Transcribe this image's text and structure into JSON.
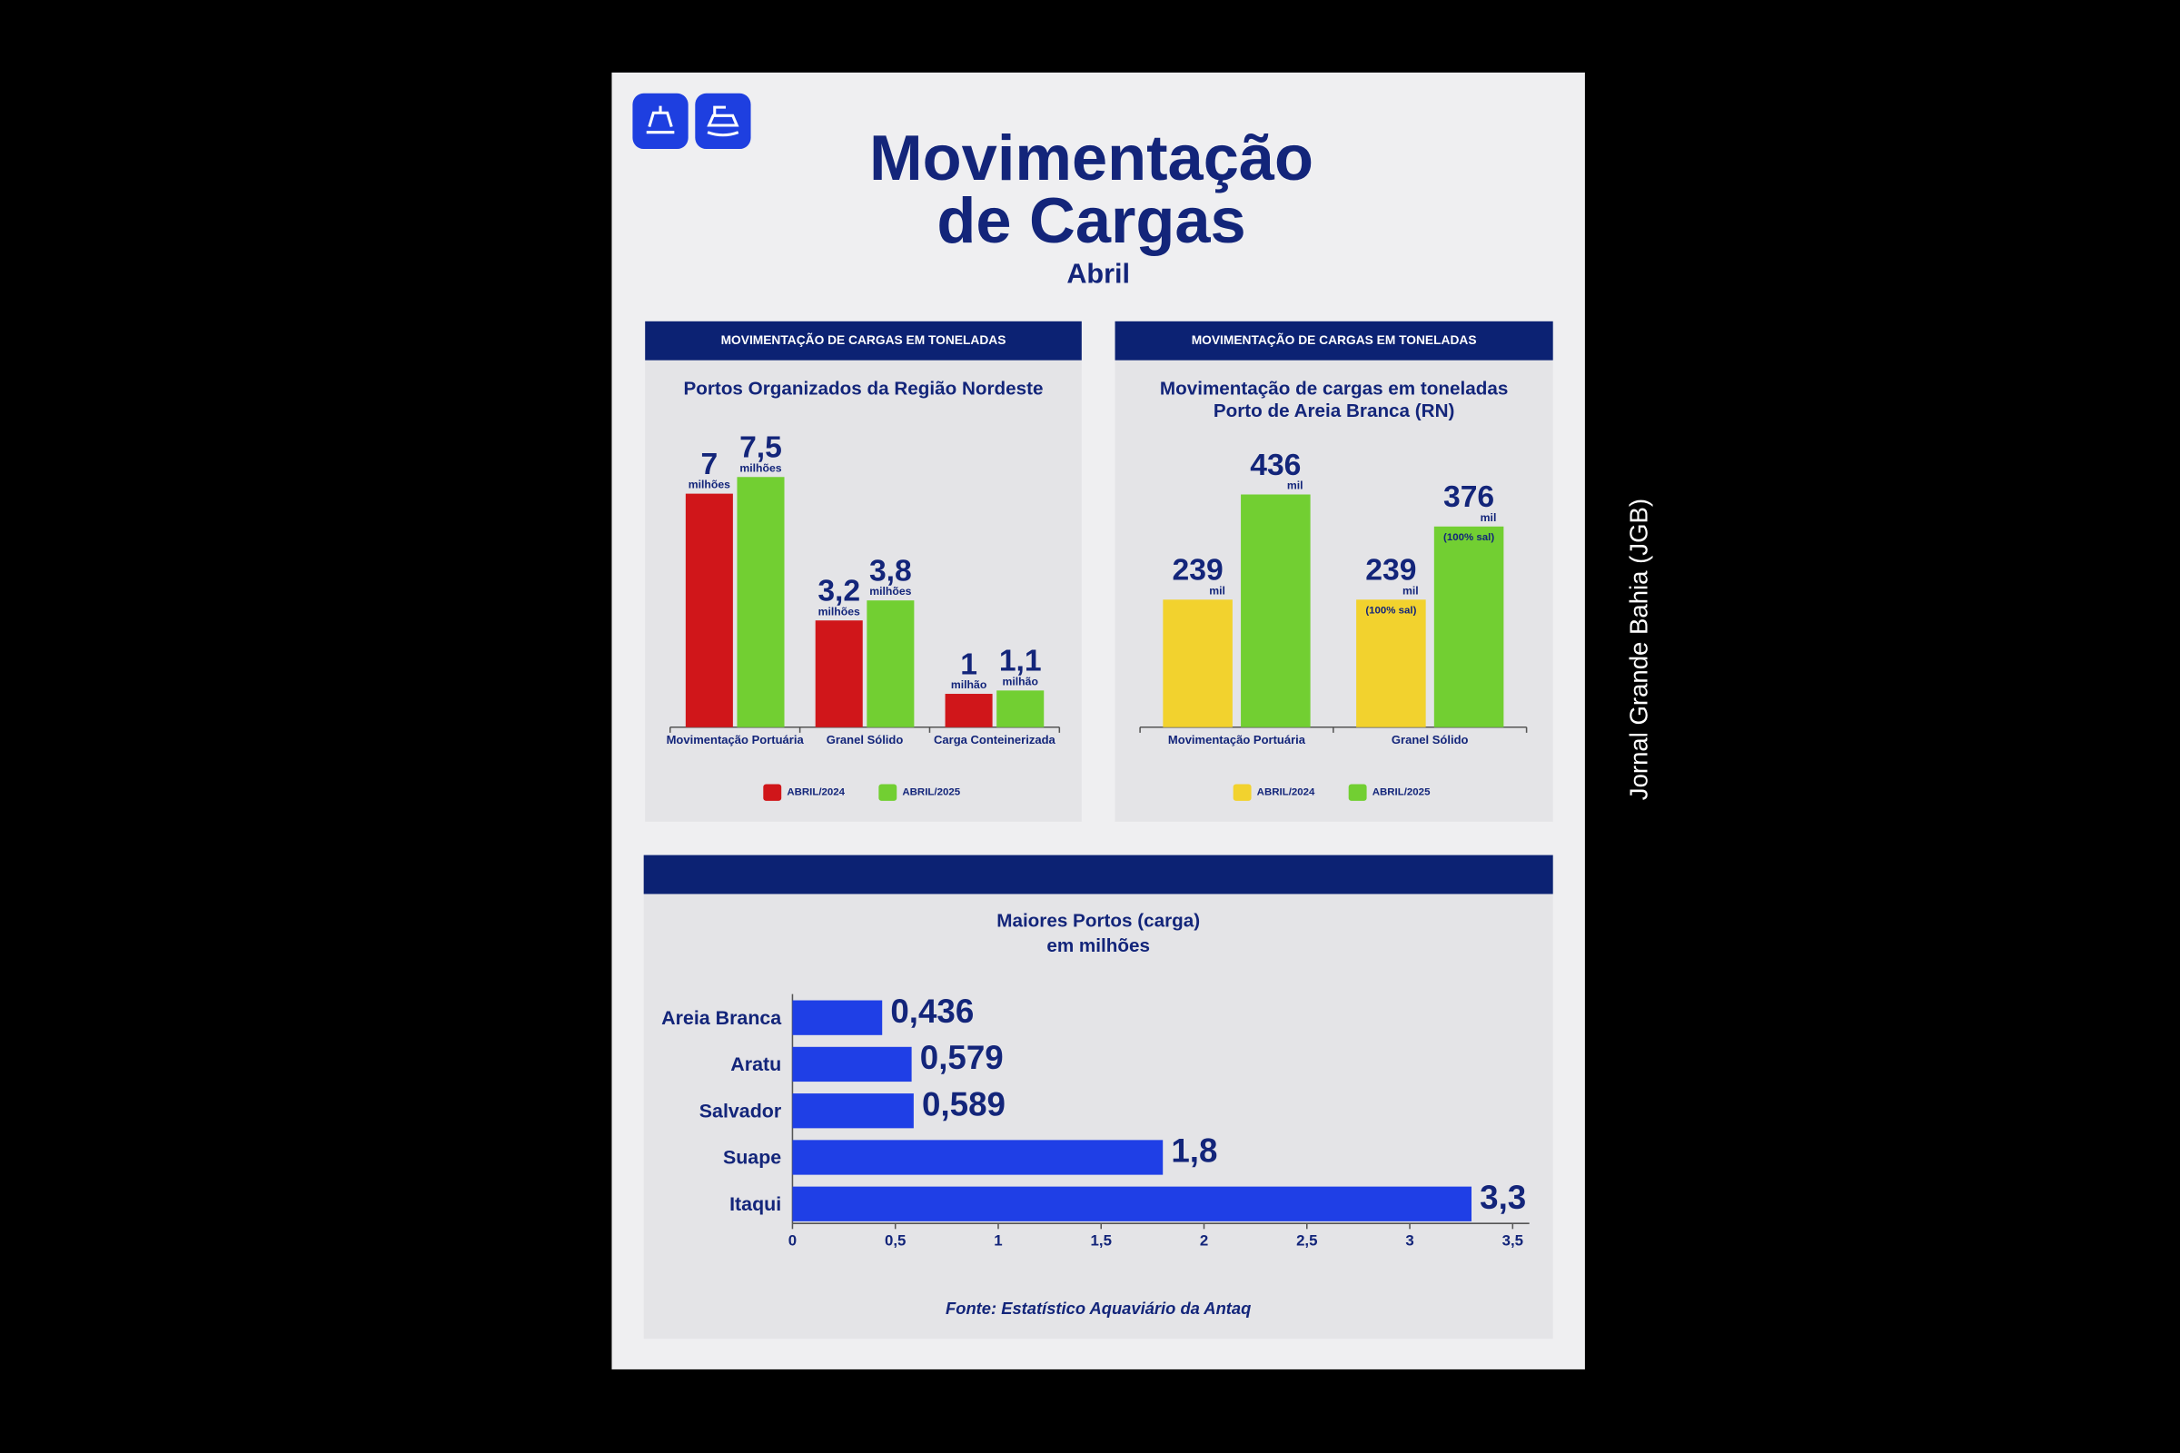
{
  "header": {
    "title": [
      "Movimentação",
      "de Cargas"
    ],
    "subtitle": "Abril"
  },
  "credit": "Jornal Grande Bahia (JGB)",
  "chart_data": [
    {
      "type": "bar",
      "header": "MOVIMENTAÇÃO DE CARGAS EM TONELADAS",
      "title": "Portos Organizados da Região Nordeste",
      "categories": [
        "Movimentação Portuária",
        "Granel Sólido",
        "Carga Conteinerizada"
      ],
      "ylim": [
        0,
        8
      ],
      "series": [
        {
          "name": "ABRIL/2024",
          "color": "#d0161a",
          "values": [
            7,
            3.2,
            1
          ],
          "value_labels": [
            "7",
            "3,2",
            "1"
          ],
          "value_units": [
            "milhões",
            "milhões",
            "milhão"
          ]
        },
        {
          "name": "ABRIL/2025",
          "color": "#72cf32",
          "values": [
            7.5,
            3.8,
            1.1
          ],
          "value_labels": [
            "7,5",
            "3,8",
            "1,1"
          ],
          "value_units": [
            "milhões",
            "milhões",
            "milhão"
          ]
        }
      ]
    },
    {
      "type": "bar",
      "header": "MOVIMENTAÇÃO DE CARGAS EM TONELADAS",
      "title": "Movimentação de cargas em toneladas",
      "subtitle": "Porto de Areia Branca (RN)",
      "categories": [
        "Movimentação Portuária",
        "Granel Sólido"
      ],
      "ylim": [
        0,
        500
      ],
      "series": [
        {
          "name": "ABRIL/2024",
          "color": "#f2d22e",
          "values": [
            239,
            239
          ],
          "value_units": [
            "mil",
            "mil"
          ],
          "notes": [
            null,
            "(100% sal)"
          ]
        },
        {
          "name": "ABRIL/2025",
          "color": "#72cf32",
          "values": [
            436,
            376
          ],
          "value_units": [
            "mil",
            "mil"
          ],
          "notes": [
            null,
            "(100% sal)"
          ]
        }
      ]
    },
    {
      "type": "barh",
      "title": "Maiores Portos (carga)",
      "subtitle": "em milhões",
      "categories": [
        "Areia Branca",
        "Aratu",
        "Salvador",
        "Suape",
        "Itaqui"
      ],
      "values": [
        0.436,
        0.579,
        0.589,
        1.8,
        3.3
      ],
      "value_labels": [
        "0,436",
        "0,579",
        "0,589",
        "1,8",
        "3,3"
      ],
      "color": "#1f3fe6",
      "xlim": [
        0,
        3.5
      ],
      "xticks": [
        0,
        {
          "value": 0.5,
          "label": "0,5"
        },
        1,
        {
          "value": 1.5,
          "label": "1,5"
        },
        2,
        {
          "value": 2.5,
          "label": "2,5"
        },
        3,
        {
          "value": 3.5,
          "label": "3,5"
        }
      ],
      "source": "Fonte: Estatístico Aquaviário da Antaq"
    }
  ]
}
